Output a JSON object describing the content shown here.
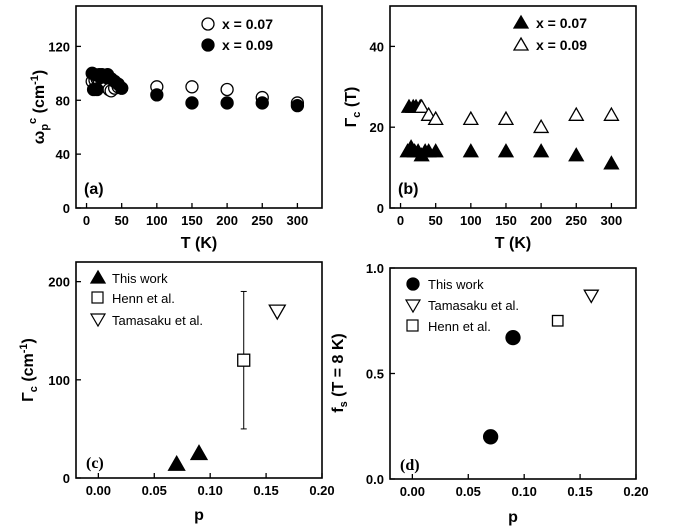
{
  "chart_data": [
    {
      "id": "a",
      "type": "scatter",
      "panel_label": "(a)",
      "xlabel": "T (K)",
      "ylabel_main": "ω",
      "ylabel_sub": "p",
      "ylabel_sup": "c",
      "ylabel_unit": "(cm",
      "ylabel_unit_sup": "-1",
      "ylabel_close": ")",
      "xlim": [
        -15,
        335
      ],
      "ylim": [
        0,
        150
      ],
      "xticks": [
        0,
        50,
        100,
        150,
        200,
        250,
        300
      ],
      "yticks": [
        0,
        40,
        80,
        120
      ],
      "legend_position": "top-right",
      "series": [
        {
          "name": "x = 0.07",
          "marker": "circle-open",
          "x": [
            8,
            12,
            15,
            18,
            22,
            25,
            28,
            32,
            35,
            40,
            45,
            50,
            100,
            150,
            200,
            250,
            300
          ],
          "y": [
            94,
            95,
            96,
            95,
            93,
            92,
            90,
            88,
            87,
            89,
            90,
            89,
            90,
            90,
            88,
            82,
            78
          ]
        },
        {
          "name": "x = 0.09",
          "marker": "circle-filled",
          "x": [
            8,
            10,
            12,
            15,
            18,
            20,
            22,
            25,
            28,
            30,
            35,
            40,
            45,
            50,
            100,
            150,
            200,
            250,
            300
          ],
          "y": [
            100,
            88,
            99,
            88,
            99,
            97,
            99,
            98,
            97,
            99,
            96,
            94,
            92,
            89,
            84,
            78,
            78,
            78,
            76
          ]
        }
      ]
    },
    {
      "id": "b",
      "type": "scatter",
      "panel_label": "(b)",
      "xlabel": "T (K)",
      "ylabel_main": "Γ",
      "ylabel_sub": "c",
      "ylabel_unit": "(T)",
      "xlim": [
        -15,
        335
      ],
      "ylim": [
        0,
        50
      ],
      "xticks": [
        0,
        50,
        100,
        150,
        200,
        250,
        300
      ],
      "yticks": [
        0,
        20,
        40
      ],
      "legend_position": "top-right",
      "series": [
        {
          "name": "x = 0.07",
          "marker": "triangle-up-filled",
          "x": [
            10,
            12,
            15,
            18,
            20,
            22,
            25,
            28,
            30,
            35,
            40,
            50,
            100,
            150,
            200,
            250,
            300
          ],
          "y": [
            14,
            25,
            15,
            25,
            14,
            25,
            14,
            25,
            13,
            14,
            14,
            14,
            14,
            14,
            14,
            13,
            11
          ]
        },
        {
          "name": "x = 0.09",
          "marker": "triangle-up-open",
          "x": [
            30,
            40,
            50,
            100,
            150,
            200,
            250,
            300
          ],
          "y": [
            25,
            23,
            22,
            22,
            22,
            20,
            23,
            23
          ]
        }
      ]
    },
    {
      "id": "c",
      "type": "scatter",
      "panel_label": "(c)",
      "xlabel": "p",
      "ylabel_main": "Γ",
      "ylabel_sub": "c",
      "ylabel_unit": "(cm",
      "ylabel_unit_sup": "-1",
      "ylabel_close": ")",
      "xlim": [
        -0.02,
        0.2
      ],
      "ylim": [
        0,
        220
      ],
      "xticks": [
        "0.00",
        "0.05",
        "0.10",
        "0.15",
        "0.20"
      ],
      "yticks": [
        0,
        100,
        200
      ],
      "legend_position": "top-left",
      "series": [
        {
          "name": "This work",
          "marker": "triangle-up-filled",
          "x": [
            0.07,
            0.09
          ],
          "y": [
            14,
            25
          ]
        },
        {
          "name": "Henn et al.",
          "marker": "square-open",
          "x": [
            0.13
          ],
          "y": [
            120
          ],
          "yerr_low": [
            50
          ],
          "yerr_high": [
            190
          ]
        },
        {
          "name": "Tamasaku et al.",
          "marker": "triangle-down-open",
          "x": [
            0.16
          ],
          "y": [
            170
          ]
        }
      ]
    },
    {
      "id": "d",
      "type": "scatter",
      "panel_label": "(d)",
      "xlabel": "p",
      "ylabel_main": "f",
      "ylabel_sub": "s",
      "ylabel_unit": "(T = 8 K)",
      "xlim": [
        -0.02,
        0.2
      ],
      "ylim": [
        0,
        1.0
      ],
      "xticks": [
        "0.00",
        "0.05",
        "0.10",
        "0.15",
        "0.20"
      ],
      "yticks": [
        "0.0",
        "0.5",
        "1.0"
      ],
      "legend_position": "top-left",
      "series": [
        {
          "name": "This work",
          "marker": "circle-filled",
          "x": [
            0.07,
            0.09
          ],
          "y": [
            0.2,
            0.67
          ]
        },
        {
          "name": "Tamasaku et al.",
          "marker": "triangle-down-open",
          "x": [
            0.16
          ],
          "y": [
            0.87
          ]
        },
        {
          "name": "Henn et al.",
          "marker": "square-open",
          "x": [
            0.13
          ],
          "y": [
            0.75
          ]
        }
      ]
    }
  ]
}
